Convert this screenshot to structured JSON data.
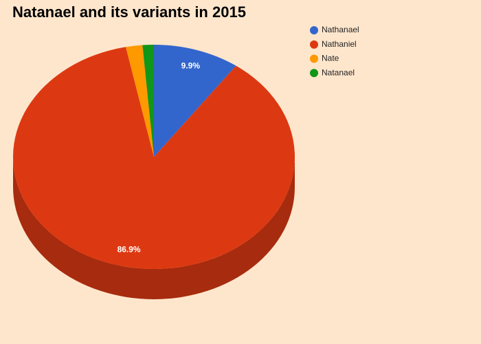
{
  "chart_data": {
    "type": "pie",
    "title": "Natanael and its variants in 2015",
    "categories": [
      "Nathanael",
      "Nathaniel",
      "Nate",
      "Natanael"
    ],
    "values": [
      9.9,
      86.9,
      1.9,
      1.3
    ],
    "value_labels": [
      "9.9%",
      "86.9%",
      null,
      null
    ],
    "colors": [
      "#3366cc",
      "#dc3912",
      "#ff9900",
      "#109618"
    ],
    "legend": "top-right"
  }
}
